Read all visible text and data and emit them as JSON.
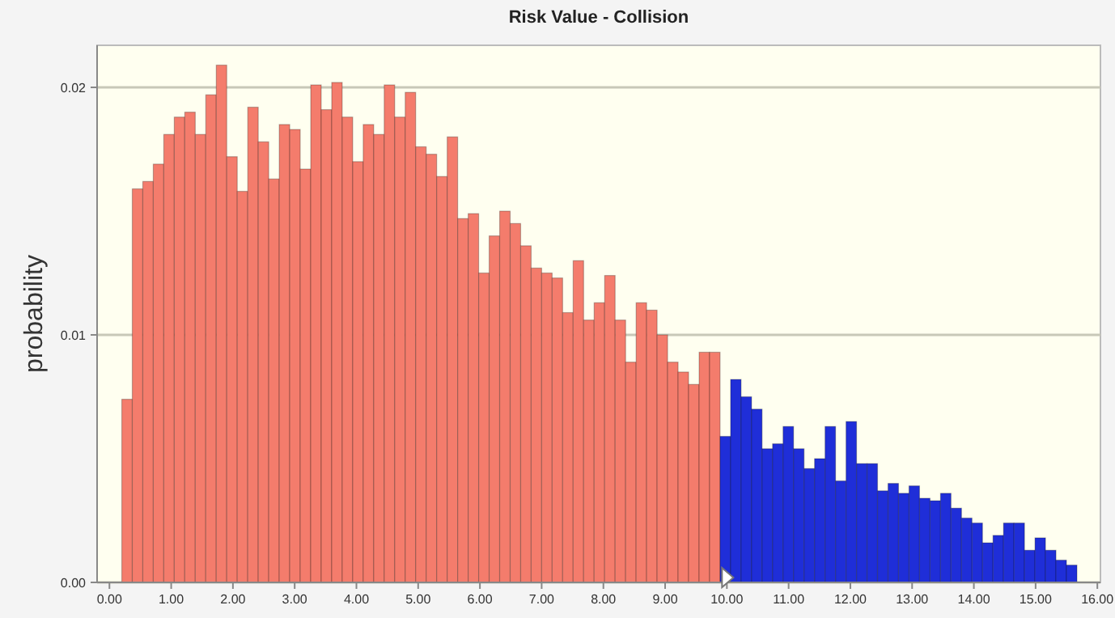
{
  "chart_data": {
    "type": "histogram",
    "title": "Risk Value - Collision",
    "ylabel": "probability",
    "bins": [
      0.2,
      0.37,
      0.54,
      0.71,
      0.88,
      1.05,
      1.22,
      1.39,
      1.56,
      1.73,
      1.9,
      2.07,
      2.24,
      2.41,
      2.58,
      2.75,
      2.92,
      3.09,
      3.26,
      3.43,
      3.6,
      3.77,
      3.94,
      4.11,
      4.28,
      4.45,
      4.62,
      4.79,
      4.96,
      5.13,
      5.3,
      5.47,
      5.64,
      5.81,
      5.98,
      6.15,
      6.32,
      6.49,
      6.66,
      6.83,
      7.0,
      7.17,
      7.34,
      7.51,
      7.68,
      7.85,
      8.02,
      8.19,
      8.36,
      8.53,
      8.7,
      8.87,
      9.04,
      9.21,
      9.38,
      9.55,
      9.72,
      9.89,
      10.06,
      10.23,
      10.4,
      10.57,
      10.74,
      10.91,
      11.08,
      11.25,
      11.42,
      11.59,
      11.76,
      11.93,
      12.1,
      12.27,
      12.44,
      12.61,
      12.78,
      12.95,
      13.12,
      13.29,
      13.46,
      13.63,
      13.8,
      13.97,
      14.14,
      14.31,
      14.48,
      14.65,
      14.82,
      14.99,
      15.16,
      15.33,
      15.5,
      15.67
    ],
    "values": [
      0.0074,
      0.0159,
      0.0162,
      0.0169,
      0.0181,
      0.0188,
      0.019,
      0.0181,
      0.0197,
      0.0209,
      0.0172,
      0.0158,
      0.0192,
      0.0178,
      0.0163,
      0.0185,
      0.0183,
      0.0167,
      0.0201,
      0.0191,
      0.0202,
      0.0188,
      0.017,
      0.0185,
      0.0181,
      0.0201,
      0.0188,
      0.0198,
      0.0176,
      0.0173,
      0.0164,
      0.018,
      0.0147,
      0.0149,
      0.0125,
      0.014,
      0.015,
      0.0145,
      0.0136,
      0.0127,
      0.0125,
      0.0123,
      0.0109,
      0.013,
      0.0106,
      0.0113,
      0.0124,
      0.0106,
      0.0089,
      0.0113,
      0.011,
      0.01,
      0.0089,
      0.0085,
      0.008,
      0.0093,
      0.0093,
      0.0059,
      0.0082,
      0.0075,
      0.007,
      0.0054,
      0.0056,
      0.0063,
      0.0054,
      0.0046,
      0.005,
      0.0063,
      0.0041,
      0.0065,
      0.0048,
      0.0048,
      0.0037,
      0.004,
      0.0036,
      0.0039,
      0.0034,
      0.0033,
      0.0036,
      0.003,
      0.0026,
      0.0024,
      0.0016,
      0.0019,
      0.0024,
      0.0024,
      0.0013,
      0.0018,
      0.0013,
      0.0009,
      0.0007
    ],
    "colors": [
      "#f47c6c",
      "#f47c6c",
      "#f47c6c",
      "#f47c6c",
      "#f47c6c",
      "#f47c6c",
      "#f47c6c",
      "#f47c6c",
      "#f47c6c",
      "#f47c6c",
      "#f47c6c",
      "#f47c6c",
      "#f47c6c",
      "#f47c6c",
      "#f47c6c",
      "#f47c6c",
      "#f47c6c",
      "#f47c6c",
      "#f47c6c",
      "#f47c6c",
      "#f47c6c",
      "#f47c6c",
      "#f47c6c",
      "#f47c6c",
      "#f47c6c",
      "#f47c6c",
      "#f47c6c",
      "#f47c6c",
      "#f47c6c",
      "#f47c6c",
      "#f47c6c",
      "#f47c6c",
      "#f47c6c",
      "#f47c6c",
      "#f47c6c",
      "#f47c6c",
      "#f47c6c",
      "#f47c6c",
      "#f47c6c",
      "#f47c6c",
      "#f47c6c",
      "#f47c6c",
      "#f47c6c",
      "#f47c6c",
      "#f47c6c",
      "#f47c6c",
      "#f47c6c",
      "#f47c6c",
      "#f47c6c",
      "#f47c6c",
      "#f47c6c",
      "#f47c6c",
      "#f47c6c",
      "#f47c6c",
      "#f47c6c",
      "#f47c6c",
      "#f47c6c",
      "#1f2ed8",
      "#1f2ed8",
      "#1f2ed8",
      "#1f2ed8",
      "#1f2ed8",
      "#1f2ed8",
      "#1f2ed8",
      "#1f2ed8",
      "#1f2ed8",
      "#1f2ed8",
      "#1f2ed8",
      "#1f2ed8",
      "#1f2ed8",
      "#1f2ed8",
      "#1f2ed8",
      "#1f2ed8",
      "#1f2ed8",
      "#1f2ed8",
      "#1f2ed8",
      "#1f2ed8",
      "#1f2ed8",
      "#1f2ed8",
      "#1f2ed8",
      "#1f2ed8",
      "#1f2ed8",
      "#1f2ed8",
      "#1f2ed8",
      "#1f2ed8",
      "#1f2ed8",
      "#1f2ed8",
      "#1f2ed8",
      "#1f2ed8",
      "#1f2ed8",
      "#1f2ed8"
    ],
    "xlim": [
      -0.2,
      16.05
    ],
    "ylim": [
      0,
      0.0217
    ],
    "xticks": [
      {
        "value": 0,
        "label": "0.00"
      },
      {
        "value": 1,
        "label": "1.00"
      },
      {
        "value": 2,
        "label": "2.00"
      },
      {
        "value": 3,
        "label": "3.00"
      },
      {
        "value": 4,
        "label": "4.00"
      },
      {
        "value": 5,
        "label": "5.00"
      },
      {
        "value": 6,
        "label": "6.00"
      },
      {
        "value": 7,
        "label": "7.00"
      },
      {
        "value": 8,
        "label": "8.00"
      },
      {
        "value": 9,
        "label": "9.00"
      },
      {
        "value": 10,
        "label": "10.00"
      },
      {
        "value": 11,
        "label": "11.00"
      },
      {
        "value": 12,
        "label": "12.00"
      },
      {
        "value": 13,
        "label": "13.00"
      },
      {
        "value": 14,
        "label": "14.00"
      },
      {
        "value": 15,
        "label": "15.00"
      },
      {
        "value": 16,
        "label": "16.00"
      }
    ],
    "yticks": [
      {
        "value": 0,
        "label": "0.00"
      },
      {
        "value": 0.01,
        "label": "0.01"
      },
      {
        "value": 0.02,
        "label": "0.02"
      }
    ],
    "grid": "y"
  }
}
